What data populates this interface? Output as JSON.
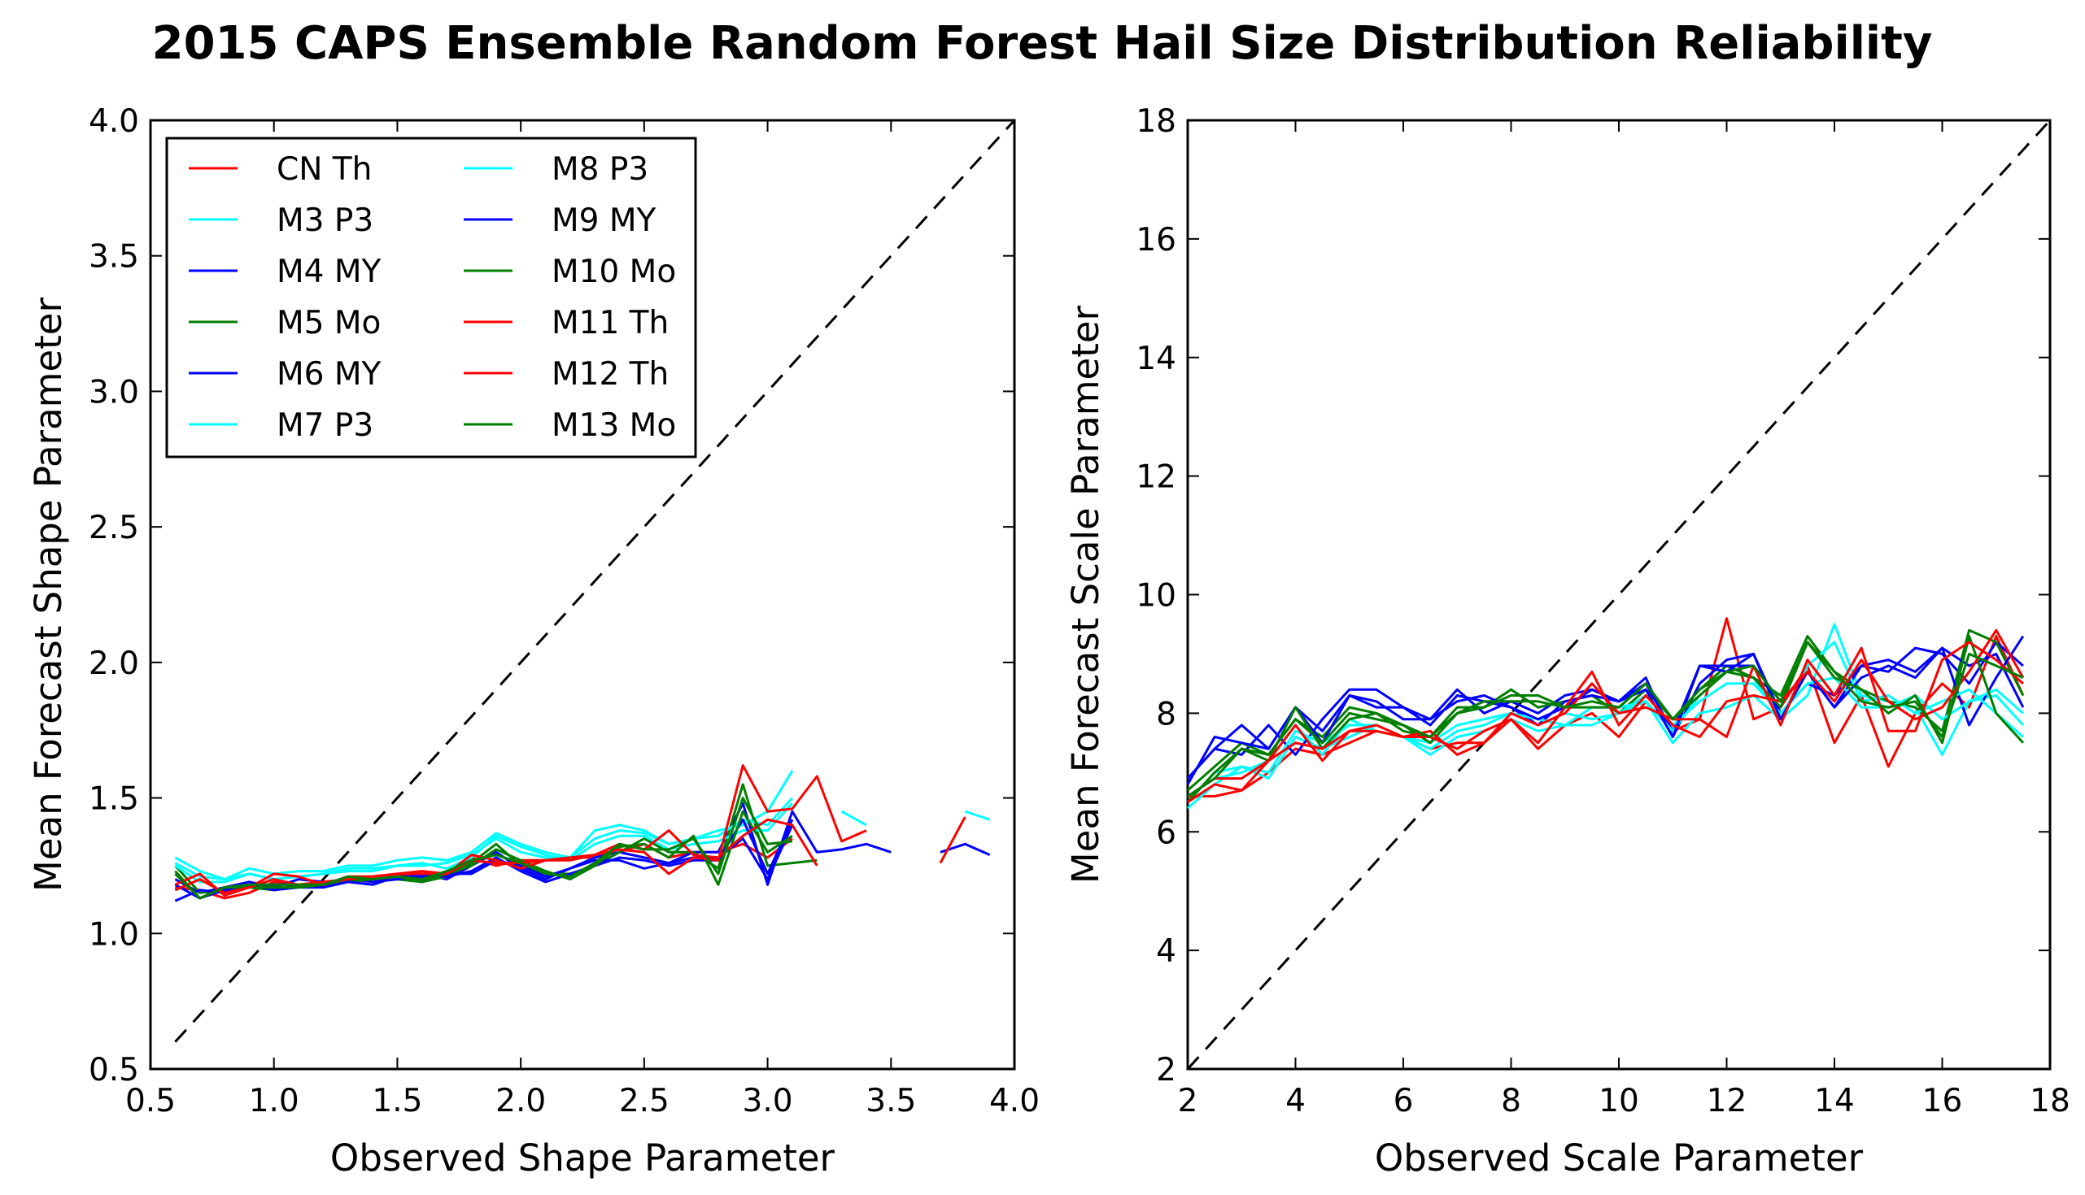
{
  "title": "2015 CAPS Ensemble Random Forest Hail Size Distribution Reliability",
  "chart_data": [
    {
      "type": "line",
      "xlabel": "Observed Shape Parameter",
      "ylabel": "Mean Forecast Shape Parameter",
      "xlim": [
        0.5,
        4.0
      ],
      "ylim": [
        0.5,
        4.0
      ],
      "xticks": [
        "0.5",
        "1.0",
        "1.5",
        "2.0",
        "2.5",
        "3.0",
        "3.5",
        "4.0"
      ],
      "yticks": [
        "0.5",
        "1.0",
        "1.5",
        "2.0",
        "2.5",
        "3.0",
        "3.5",
        "4.0"
      ],
      "grid": false,
      "legend": "upper-left, 2 columns",
      "reference_line": {
        "style": "dashed",
        "color": "#000000",
        "x": [
          0.6,
          4.0
        ],
        "y": [
          0.6,
          4.0
        ]
      },
      "x": [
        0.6,
        0.7,
        0.8,
        0.9,
        1.0,
        1.1,
        1.2,
        1.3,
        1.4,
        1.5,
        1.6,
        1.7,
        1.8,
        1.9,
        2.0,
        2.1,
        2.2,
        2.3,
        2.4,
        2.5,
        2.6,
        2.7,
        2.8,
        2.9,
        3.0,
        3.1,
        3.2,
        3.3,
        3.4,
        3.5,
        3.6,
        3.7,
        3.8,
        3.9
      ],
      "series": [
        {
          "name": "CN Th",
          "color": "#ff0000",
          "values": [
            1.17,
            1.16,
            1.13,
            1.15,
            1.19,
            1.18,
            1.17,
            1.2,
            1.2,
            1.22,
            1.2,
            1.22,
            1.28,
            1.25,
            1.27,
            1.27,
            1.28,
            1.28,
            1.3,
            1.33,
            1.28,
            1.3,
            1.3,
            1.33,
            1.28,
            1.35,
            null,
            null,
            null,
            null,
            null,
            null,
            null,
            null
          ]
        },
        {
          "name": "M3 P3",
          "color": "#00ffff",
          "values": [
            1.28,
            1.23,
            1.2,
            1.24,
            1.22,
            1.23,
            1.23,
            1.25,
            1.25,
            1.27,
            1.28,
            1.27,
            1.3,
            1.37,
            1.33,
            1.3,
            1.28,
            1.38,
            1.4,
            1.38,
            1.33,
            1.35,
            1.38,
            1.4,
            1.45,
            1.6,
            null,
            null,
            null,
            null,
            null,
            null,
            null,
            null
          ]
        },
        {
          "name": "M4 MY",
          "color": "#0000ff",
          "values": [
            1.2,
            1.15,
            1.17,
            1.19,
            1.17,
            1.2,
            1.19,
            1.2,
            1.19,
            1.2,
            1.22,
            1.2,
            1.25,
            1.3,
            1.24,
            1.2,
            1.24,
            1.28,
            1.3,
            1.28,
            1.26,
            1.3,
            1.3,
            1.48,
            1.18,
            1.45,
            1.3,
            1.31,
            1.33,
            1.3,
            null,
            1.3,
            1.33,
            1.29
          ]
        },
        {
          "name": "M5 Mo",
          "color": "#007f00",
          "values": [
            1.25,
            1.15,
            1.16,
            1.17,
            1.16,
            1.18,
            1.19,
            1.19,
            1.2,
            1.2,
            1.19,
            1.21,
            1.26,
            1.33,
            1.25,
            1.22,
            1.22,
            1.25,
            1.3,
            1.35,
            1.3,
            1.3,
            1.24,
            1.55,
            1.25,
            1.26,
            1.27,
            null,
            null,
            null,
            null,
            null,
            null,
            null
          ]
        },
        {
          "name": "M6 MY",
          "color": "#0000ff",
          "values": [
            1.12,
            1.16,
            1.15,
            1.18,
            1.16,
            1.17,
            1.17,
            1.19,
            1.18,
            1.21,
            1.21,
            1.22,
            1.22,
            1.27,
            1.25,
            1.21,
            1.24,
            1.27,
            1.27,
            1.24,
            1.26,
            1.28,
            1.28,
            1.35,
            1.2,
            1.4,
            null,
            null,
            null,
            null,
            null,
            null,
            null,
            null
          ]
        },
        {
          "name": "M7 P3",
          "color": "#00ffff",
          "values": [
            1.26,
            1.21,
            1.2,
            1.22,
            1.2,
            1.21,
            1.22,
            1.24,
            1.24,
            1.25,
            1.25,
            1.26,
            1.29,
            1.35,
            1.3,
            1.28,
            1.28,
            1.35,
            1.38,
            1.37,
            1.33,
            1.35,
            1.36,
            1.42,
            1.4,
            1.5,
            null,
            1.45,
            1.4,
            null,
            null,
            null,
            1.45,
            1.42
          ]
        },
        {
          "name": "M8 P3",
          "color": "#00ffff",
          "values": [
            1.25,
            1.19,
            1.19,
            1.22,
            1.2,
            1.21,
            1.22,
            1.23,
            1.23,
            1.25,
            1.26,
            1.24,
            1.28,
            1.36,
            1.32,
            1.29,
            1.27,
            1.33,
            1.36,
            1.36,
            1.31,
            1.33,
            1.34,
            1.38,
            1.38,
            1.48,
            null,
            null,
            null,
            null,
            null,
            null,
            null,
            null
          ]
        },
        {
          "name": "M9 MY",
          "color": "#0000ff",
          "values": [
            1.18,
            1.13,
            1.16,
            1.18,
            1.18,
            1.18,
            1.18,
            1.2,
            1.2,
            1.2,
            1.21,
            1.21,
            1.23,
            1.28,
            1.23,
            1.19,
            1.22,
            1.25,
            1.28,
            1.27,
            1.25,
            1.27,
            1.27,
            1.42,
            1.22,
            1.42,
            null,
            null,
            null,
            null,
            null,
            null,
            null,
            null
          ]
        },
        {
          "name": "M10 Mo",
          "color": "#007f00",
          "values": [
            1.23,
            1.13,
            1.17,
            1.17,
            1.17,
            1.17,
            1.18,
            1.2,
            1.2,
            1.21,
            1.19,
            1.22,
            1.25,
            1.31,
            1.27,
            1.23,
            1.2,
            1.25,
            1.32,
            1.33,
            1.28,
            1.36,
            1.18,
            1.45,
            1.3,
            1.36,
            null,
            null,
            null,
            null,
            null,
            null,
            null,
            null
          ]
        },
        {
          "name": "M11 Th",
          "color": "#ff0000",
          "values": [
            1.16,
            1.2,
            1.15,
            1.17,
            1.2,
            1.18,
            1.19,
            1.2,
            1.21,
            1.22,
            1.23,
            1.22,
            1.27,
            1.26,
            1.26,
            1.27,
            1.27,
            1.29,
            1.31,
            1.3,
            1.22,
            1.28,
            1.27,
            1.62,
            1.45,
            1.46,
            1.58,
            1.34,
            1.38,
            null,
            null,
            1.26,
            1.43,
            null
          ]
        },
        {
          "name": "M12 Th",
          "color": "#ff0000",
          "values": [
            1.18,
            1.22,
            1.14,
            1.17,
            1.22,
            1.21,
            1.18,
            1.21,
            1.21,
            1.22,
            1.22,
            1.22,
            1.29,
            1.27,
            1.24,
            1.27,
            1.28,
            1.29,
            1.33,
            1.31,
            1.38,
            1.29,
            1.28,
            1.36,
            1.42,
            1.4,
            1.25,
            null,
            null,
            null,
            null,
            null,
            null,
            null
          ]
        },
        {
          "name": "M13 Mo",
          "color": "#007f00",
          "values": [
            1.22,
            1.13,
            1.17,
            1.18,
            1.18,
            1.18,
            1.18,
            1.21,
            1.2,
            1.21,
            1.2,
            1.23,
            1.27,
            1.29,
            1.26,
            1.22,
            1.21,
            1.26,
            1.33,
            1.31,
            1.31,
            1.35,
            1.22,
            1.5,
            1.33,
            1.34,
            null,
            null,
            null,
            null,
            null,
            null,
            null,
            null
          ]
        }
      ]
    },
    {
      "type": "line",
      "xlabel": "Observed Scale Parameter",
      "ylabel": "Mean Forecast Scale Parameter",
      "xlim": [
        2,
        18
      ],
      "ylim": [
        2,
        18
      ],
      "xticks": [
        "2",
        "4",
        "6",
        "8",
        "10",
        "12",
        "14",
        "16",
        "18"
      ],
      "yticks": [
        "2",
        "4",
        "6",
        "8",
        "10",
        "12",
        "14",
        "16",
        "18"
      ],
      "grid": false,
      "reference_line": {
        "style": "dashed",
        "color": "#000000",
        "x": [
          2,
          18
        ],
        "y": [
          2,
          18
        ]
      },
      "x": [
        2.0,
        2.5,
        3.0,
        3.5,
        4.0,
        4.5,
        5.0,
        5.5,
        6.0,
        6.5,
        7.0,
        7.5,
        8.0,
        8.5,
        9.0,
        9.5,
        10.0,
        10.5,
        11.0,
        11.5,
        12.0,
        12.5,
        13.0,
        13.5,
        14.0,
        14.5,
        15.0,
        15.5,
        16.0,
        16.5,
        17.0,
        17.5
      ],
      "series": [
        {
          "name": "CN Th",
          "color": "#ff0000",
          "values": [
            6.6,
            6.6,
            6.7,
            7.0,
            7.4,
            7.3,
            7.5,
            7.7,
            7.6,
            7.4,
            7.5,
            7.5,
            7.9,
            7.4,
            7.8,
            8.0,
            7.6,
            8.2,
            7.7,
            7.9,
            9.6,
            7.9,
            8.1,
            8.8,
            7.5,
            8.3,
            7.1,
            8.0,
            8.5,
            8.1,
            9.3,
            8.3
          ]
        },
        {
          "name": "M3 P3",
          "color": "#00ffff",
          "values": [
            6.5,
            7.0,
            7.1,
            6.9,
            7.6,
            7.4,
            7.6,
            7.8,
            7.6,
            7.3,
            7.6,
            7.7,
            7.9,
            7.7,
            7.8,
            7.8,
            8.0,
            8.2,
            7.5,
            8.0,
            8.1,
            8.3,
            7.9,
            8.3,
            9.5,
            8.3,
            8.2,
            8.1,
            7.3,
            8.2,
            8.3,
            7.8
          ]
        },
        {
          "name": "M4 MY",
          "color": "#0000ff",
          "values": [
            6.9,
            7.4,
            7.3,
            7.8,
            7.3,
            7.9,
            8.4,
            8.4,
            8.1,
            7.9,
            8.4,
            8.0,
            8.2,
            8.0,
            8.3,
            8.4,
            8.2,
            8.6,
            7.6,
            8.5,
            8.9,
            9.0,
            8.0,
            8.5,
            8.3,
            8.8,
            8.7,
            9.1,
            9.0,
            8.5,
            9.2,
            8.8
          ]
        },
        {
          "name": "M5 Mo",
          "color": "#007f00",
          "values": [
            6.7,
            7.1,
            7.5,
            7.3,
            7.9,
            7.6,
            8.1,
            8.0,
            7.7,
            7.6,
            8.1,
            8.1,
            8.4,
            8.1,
            8.2,
            8.3,
            8.0,
            8.4,
            7.9,
            8.4,
            8.8,
            8.6,
            8.3,
            9.3,
            8.7,
            8.4,
            8.2,
            8.1,
            7.7,
            9.4,
            9.2,
            8.3
          ]
        },
        {
          "name": "M6 MY",
          "color": "#0000ff",
          "values": [
            6.8,
            7.6,
            7.5,
            7.4,
            8.1,
            7.7,
            8.3,
            8.1,
            8.1,
            7.8,
            8.3,
            8.2,
            8.1,
            7.8,
            8.2,
            8.3,
            8.2,
            8.5,
            7.7,
            8.8,
            8.8,
            8.8,
            8.2,
            8.7,
            8.1,
            8.8,
            8.9,
            8.7,
            9.1,
            7.8,
            8.6,
            9.3
          ]
        },
        {
          "name": "M7 P3",
          "color": "#00ffff",
          "values": [
            6.6,
            6.9,
            7.0,
            7.2,
            7.8,
            7.3,
            7.9,
            7.7,
            7.6,
            7.5,
            7.8,
            7.9,
            8.0,
            7.9,
            7.8,
            8.1,
            8.1,
            8.2,
            7.7,
            8.3,
            8.7,
            8.6,
            7.9,
            8.8,
            9.2,
            8.2,
            8.3,
            8.0,
            8.2,
            8.4,
            8.0,
            7.6
          ]
        },
        {
          "name": "M8 P3",
          "color": "#00ffff",
          "values": [
            6.4,
            6.8,
            7.1,
            7.0,
            7.7,
            7.5,
            7.8,
            7.8,
            7.6,
            7.4,
            7.7,
            7.8,
            8.0,
            7.8,
            8.0,
            7.9,
            8.0,
            8.3,
            7.8,
            8.2,
            8.5,
            8.5,
            8.0,
            8.5,
            8.6,
            8.1,
            8.1,
            8.3,
            7.9,
            8.2,
            8.4,
            8.0
          ]
        },
        {
          "name": "M9 MY",
          "color": "#0000ff",
          "values": [
            6.9,
            7.4,
            7.8,
            7.4,
            8.1,
            7.5,
            8.3,
            8.2,
            7.9,
            7.9,
            8.2,
            8.3,
            8.1,
            7.9,
            8.1,
            8.4,
            8.2,
            8.4,
            7.6,
            8.8,
            8.7,
            9.0,
            7.9,
            8.7,
            8.1,
            8.6,
            8.8,
            8.6,
            9.1,
            8.8,
            9.0,
            8.1
          ]
        },
        {
          "name": "M10 Mo",
          "color": "#007f00",
          "values": [
            6.5,
            7.0,
            7.4,
            7.2,
            8.1,
            7.4,
            7.9,
            8.0,
            7.8,
            7.5,
            8.0,
            8.1,
            8.3,
            8.3,
            8.1,
            8.1,
            8.1,
            8.5,
            7.9,
            8.3,
            8.7,
            8.6,
            8.1,
            9.2,
            8.6,
            8.4,
            8.0,
            8.3,
            7.5,
            9.3,
            8.0,
            7.5
          ]
        },
        {
          "name": "M11 Th",
          "color": "#ff0000",
          "values": [
            6.5,
            6.8,
            6.7,
            7.2,
            7.8,
            7.2,
            7.7,
            7.7,
            7.6,
            7.6,
            7.4,
            7.7,
            7.9,
            7.5,
            8.1,
            8.7,
            7.8,
            8.3,
            7.8,
            7.6,
            8.2,
            8.3,
            8.2,
            8.7,
            8.2,
            8.9,
            8.2,
            7.9,
            8.1,
            8.7,
            9.4,
            8.6
          ]
        },
        {
          "name": "M12 Th",
          "color": "#ff0000",
          "values": [
            6.6,
            6.9,
            6.9,
            7.2,
            7.5,
            7.4,
            7.7,
            7.8,
            7.6,
            7.7,
            7.3,
            7.5,
            8.0,
            7.8,
            8.0,
            8.5,
            8.0,
            8.1,
            7.9,
            7.9,
            7.6,
            8.8,
            7.8,
            8.9,
            8.3,
            9.1,
            7.7,
            7.7,
            8.9,
            9.2,
            8.9,
            8.5
          ]
        },
        {
          "name": "M13 Mo",
          "color": "#007f00",
          "values": [
            6.6,
            6.9,
            7.4,
            7.3,
            7.9,
            7.5,
            8.0,
            7.9,
            7.8,
            7.6,
            8.0,
            8.2,
            8.2,
            8.2,
            8.1,
            8.2,
            8.1,
            8.5,
            7.9,
            8.4,
            8.7,
            8.8,
            8.2,
            9.2,
            8.7,
            8.2,
            8.1,
            8.2,
            7.6,
            9.0,
            8.8,
            8.6
          ]
        }
      ]
    }
  ]
}
